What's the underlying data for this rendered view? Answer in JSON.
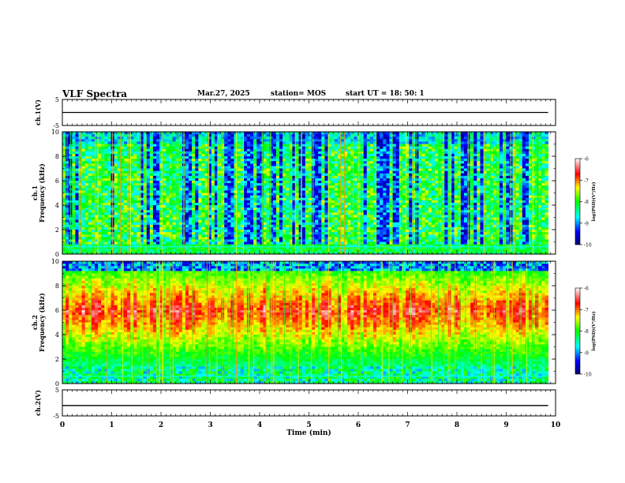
{
  "header": {
    "title": "VLF Spectra",
    "date": "Mar.27, 2025",
    "station": "station= MOS",
    "start_ut": "start  UT =  18: 50: 1"
  },
  "chart_data": [
    {
      "type": "line",
      "panel": "ch1-voltage",
      "ylabel": "ch.1(V)",
      "ylim": [
        -5,
        5
      ],
      "yticks": [
        "5",
        "-5"
      ],
      "xlim": [
        0,
        10
      ],
      "series": [
        {
          "x": [
            0,
            9.85
          ],
          "y": [
            0,
            0
          ]
        }
      ]
    },
    {
      "type": "heatmap",
      "panel": "ch1-spectrogram",
      "ylabel": "ch.1\nFrequency (kHz)",
      "ylim": [
        0,
        10
      ],
      "yticks": [
        "0",
        "2",
        "4",
        "6",
        "8",
        "10"
      ],
      "xlim": [
        0,
        10
      ],
      "data_extent_min": 9.85,
      "colorbar": {
        "label": "log(PSD)(V²/Hz)",
        "range": [
          -10,
          -6
        ],
        "ticks": [
          "-6",
          "-7",
          "-8",
          "-9",
          "-10"
        ]
      }
    },
    {
      "type": "heatmap",
      "panel": "ch2-spectrogram",
      "ylabel": "ch.2\nFrequency (kHz)",
      "ylim": [
        0,
        10
      ],
      "yticks": [
        "0",
        "2",
        "4",
        "6",
        "8",
        "10"
      ],
      "xlim": [
        0,
        10
      ],
      "data_extent_min": 9.85,
      "colorbar": {
        "label": "log(PSD)(V²/Hz)",
        "range": [
          -10,
          -6
        ],
        "ticks": [
          "-6",
          "-7",
          "-8",
          "-9",
          "-10"
        ]
      }
    },
    {
      "type": "line",
      "panel": "ch2-voltage",
      "ylabel": "ch.2(V)",
      "ylim": [
        -5,
        5
      ],
      "yticks": [
        "5",
        "-5"
      ],
      "xlim": [
        0,
        10
      ],
      "series": [
        {
          "x": [
            0,
            9.85
          ],
          "y": [
            -1,
            -1
          ]
        }
      ]
    }
  ],
  "xaxis": {
    "label": "Time (min)",
    "ticks": [
      "0",
      "1",
      "2",
      "3",
      "4",
      "5",
      "6",
      "7",
      "8",
      "9",
      "10"
    ]
  },
  "colors": {
    "background": "#000000",
    "axis": "#000000"
  }
}
